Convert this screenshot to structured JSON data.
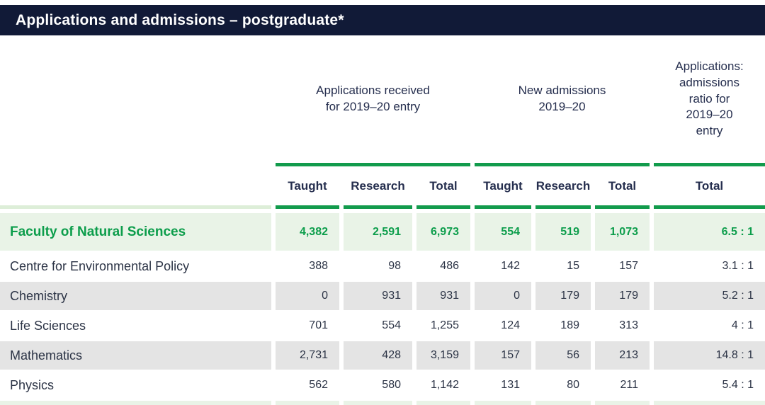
{
  "title": "Applications and admissions – postgraduate*",
  "colors": {
    "title_bar_bg": "#111a37",
    "accent_green": "#129b4c",
    "highlight_row_bg": "#e9f3e7",
    "stripe_row_bg": "#e4e4e4",
    "header_text": "#252e4e"
  },
  "table": {
    "groups": [
      {
        "label": "Applications received\nfor 2019–20 entry"
      },
      {
        "label": "New admissions\n2019–20"
      },
      {
        "label": "Applications:\nadmissions\nratio for\n2019–20\nentry"
      }
    ],
    "columns": [
      "Taught",
      "Research",
      "Total",
      "Taught",
      "Research",
      "Total",
      "Total"
    ],
    "rows": [
      {
        "label": "Faculty of Natural Sciences",
        "highlight": true,
        "values": [
          "4,382",
          "2,591",
          "6,973",
          "554",
          "519",
          "1,073",
          "6.5 : 1"
        ]
      },
      {
        "label": "Centre for Environmental Policy",
        "highlight": false,
        "values": [
          "388",
          "98",
          "486",
          "142",
          "15",
          "157",
          "3.1 : 1"
        ]
      },
      {
        "label": "Chemistry",
        "highlight": false,
        "values": [
          "0",
          "931",
          "931",
          "0",
          "179",
          "179",
          "5.2 : 1"
        ]
      },
      {
        "label": "Life Sciences",
        "highlight": false,
        "values": [
          "701",
          "554",
          "1,255",
          "124",
          "189",
          "313",
          "4 : 1"
        ]
      },
      {
        "label": "Mathematics",
        "highlight": false,
        "values": [
          "2,731",
          "428",
          "3,159",
          "157",
          "56",
          "213",
          "14.8 : 1"
        ]
      },
      {
        "label": "Physics",
        "highlight": false,
        "values": [
          "562",
          "580",
          "1,142",
          "131",
          "80",
          "211",
          "5.4 : 1"
        ]
      }
    ]
  }
}
